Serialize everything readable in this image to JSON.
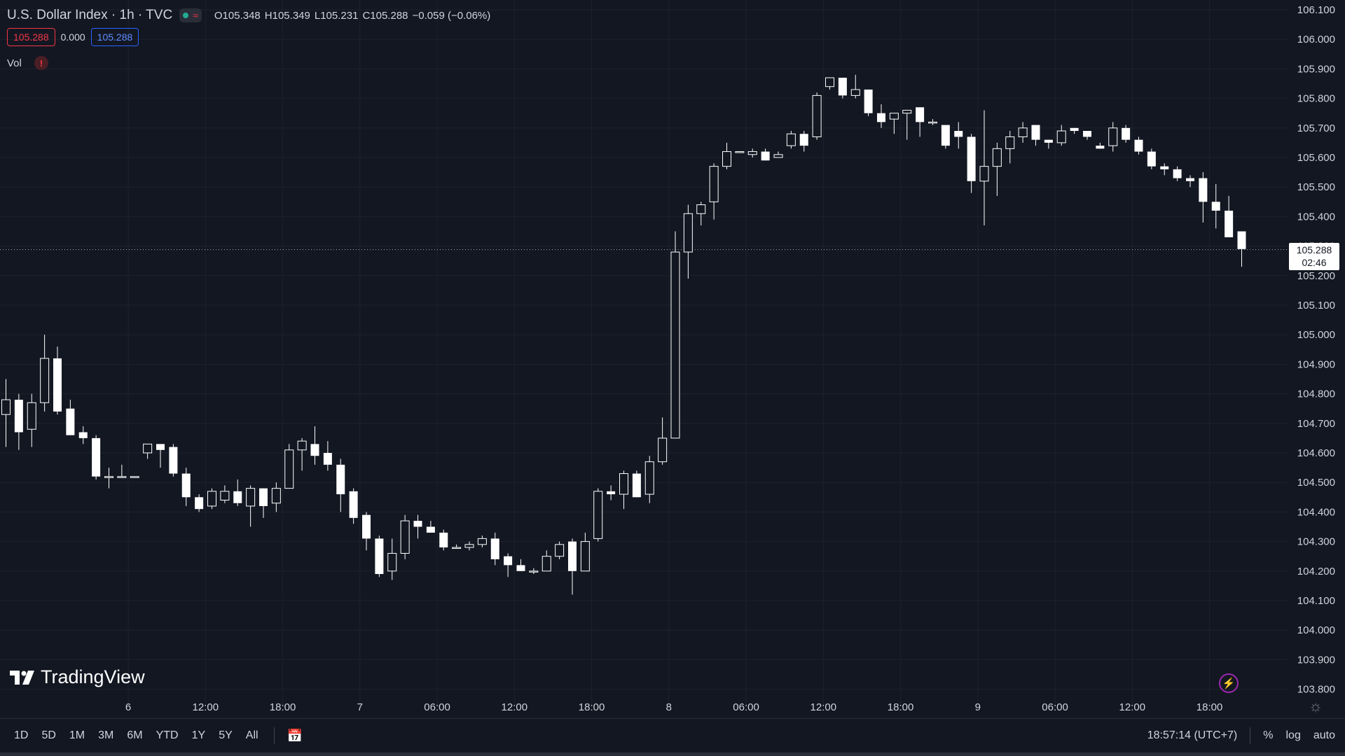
{
  "header": {
    "title": "U.S. Dollar Index · 1h · TVC",
    "ohlc": {
      "open_label": "O",
      "open": "105.348",
      "high_label": "H",
      "high": "105.349",
      "low_label": "L",
      "low": "105.231",
      "close_label": "C",
      "close": "105.288",
      "change": "−0.059 (−0.06%)"
    },
    "bid": "105.288",
    "spread": "0.000",
    "ask": "105.288",
    "vol_label": "Vol",
    "vol_warning_icon": "exclamation-icon",
    "status_icon": "market-open-dot-icon"
  },
  "last_price": {
    "price": "105.288",
    "countdown": "02:46"
  },
  "logo_text": "TradingView",
  "bottom_bar": {
    "ranges": [
      "1D",
      "5D",
      "1M",
      "3M",
      "6M",
      "YTD",
      "1Y",
      "5Y",
      "All"
    ],
    "time": "18:57:14 (UTC+7)",
    "percent_label": "%",
    "log_label": "log",
    "auto_label": "auto"
  },
  "colors": {
    "background": "#131722",
    "candle": "#ffffff",
    "grid": "#1f2330",
    "bid_red": "#f23645",
    "ask_blue": "#2962ff"
  },
  "chart_data": {
    "type": "candlestick",
    "title": "U.S. Dollar Index",
    "interval": "1h",
    "ylim": [
      103.75,
      106.12
    ],
    "y_ticks": [
      "106.100",
      "106.000",
      "105.900",
      "105.800",
      "105.700",
      "105.600",
      "105.500",
      "105.400",
      "105.300",
      "105.200",
      "105.100",
      "105.000",
      "104.900",
      "104.800",
      "104.700",
      "104.600",
      "104.500",
      "104.400",
      "104.300",
      "104.200",
      "104.100",
      "104.000",
      "103.900",
      "103.800"
    ],
    "x_ticks": [
      {
        "label": "6",
        "index": 9.5
      },
      {
        "label": "12:00",
        "index": 15.5
      },
      {
        "label": "18:00",
        "index": 21.5
      },
      {
        "label": "7",
        "index": 27.5
      },
      {
        "label": "06:00",
        "index": 33.5
      },
      {
        "label": "12:00",
        "index": 39.5
      },
      {
        "label": "18:00",
        "index": 45.5
      },
      {
        "label": "8",
        "index": 51.5
      },
      {
        "label": "06:00",
        "index": 57.5
      },
      {
        "label": "12:00",
        "index": 63.5
      },
      {
        "label": "18:00",
        "index": 69.5
      },
      {
        "label": "9",
        "index": 75.5
      },
      {
        "label": "06:00",
        "index": 81.5
      },
      {
        "label": "12:00",
        "index": 87.5
      },
      {
        "label": "18:00",
        "index": 93.5
      }
    ],
    "grid": true,
    "last_price_line": 105.288,
    "candles": [
      [
        104.73,
        104.78,
        104.85,
        104.62
      ],
      [
        104.78,
        104.67,
        104.8,
        104.61
      ],
      [
        104.68,
        104.77,
        104.8,
        104.62
      ],
      [
        104.77,
        104.92,
        105.0,
        104.74
      ],
      [
        104.92,
        104.74,
        104.96,
        104.73
      ],
      [
        104.75,
        104.66,
        104.78,
        104.66
      ],
      [
        104.67,
        104.65,
        104.69,
        104.63
      ],
      [
        104.65,
        104.52,
        104.66,
        104.51
      ],
      [
        104.52,
        104.52,
        104.55,
        104.48
      ],
      [
        104.52,
        104.52,
        104.56,
        104.52
      ],
      [
        104.52,
        104.52,
        104.52,
        104.52
      ],
      [
        104.6,
        104.63,
        104.63,
        104.58
      ],
      [
        104.63,
        104.61,
        104.63,
        104.55
      ],
      [
        104.62,
        104.53,
        104.63,
        104.52
      ],
      [
        104.53,
        104.45,
        104.55,
        104.42
      ],
      [
        104.45,
        104.41,
        104.46,
        104.4
      ],
      [
        104.42,
        104.47,
        104.48,
        104.41
      ],
      [
        104.44,
        104.47,
        104.49,
        104.43
      ],
      [
        104.47,
        104.43,
        104.51,
        104.42
      ],
      [
        104.42,
        104.48,
        104.49,
        104.35
      ],
      [
        104.48,
        104.42,
        104.48,
        104.38
      ],
      [
        104.43,
        104.48,
        104.5,
        104.4
      ],
      [
        104.48,
        104.61,
        104.63,
        104.48
      ],
      [
        104.61,
        104.64,
        104.65,
        104.54
      ],
      [
        104.63,
        104.59,
        104.69,
        104.56
      ],
      [
        104.6,
        104.56,
        104.64,
        104.54
      ],
      [
        104.56,
        104.46,
        104.58,
        104.4
      ],
      [
        104.47,
        104.38,
        104.48,
        104.36
      ],
      [
        104.39,
        104.31,
        104.4,
        104.27
      ],
      [
        104.31,
        104.19,
        104.32,
        104.18
      ],
      [
        104.2,
        104.26,
        104.31,
        104.17
      ],
      [
        104.26,
        104.37,
        104.39,
        104.24
      ],
      [
        104.37,
        104.35,
        104.39,
        104.31
      ],
      [
        104.35,
        104.33,
        104.37,
        104.33
      ],
      [
        104.33,
        104.28,
        104.34,
        104.27
      ],
      [
        104.28,
        104.28,
        104.29,
        104.28
      ],
      [
        104.28,
        104.29,
        104.3,
        104.27
      ],
      [
        104.29,
        104.31,
        104.32,
        104.28
      ],
      [
        104.31,
        104.24,
        104.33,
        104.22
      ],
      [
        104.25,
        104.22,
        104.26,
        104.18
      ],
      [
        104.22,
        104.2,
        104.24,
        104.2
      ],
      [
        104.2,
        104.2,
        104.21,
        104.19
      ],
      [
        104.2,
        104.25,
        104.27,
        104.2
      ],
      [
        104.25,
        104.29,
        104.3,
        104.24
      ],
      [
        104.3,
        104.2,
        104.31,
        104.12
      ],
      [
        104.2,
        104.3,
        104.33,
        104.2
      ],
      [
        104.31,
        104.47,
        104.48,
        104.3
      ],
      [
        104.47,
        104.46,
        104.49,
        104.44
      ],
      [
        104.46,
        104.53,
        104.54,
        104.41
      ],
      [
        104.53,
        104.45,
        104.54,
        104.45
      ],
      [
        104.46,
        104.57,
        104.59,
        104.43
      ],
      [
        104.57,
        104.65,
        104.72,
        104.56
      ],
      [
        104.65,
        105.28,
        105.35,
        104.65
      ],
      [
        105.28,
        105.41,
        105.44,
        105.19
      ],
      [
        105.41,
        105.44,
        105.45,
        105.37
      ],
      [
        105.45,
        105.57,
        105.58,
        105.39
      ],
      [
        105.57,
        105.62,
        105.65,
        105.56
      ],
      [
        105.62,
        105.62,
        105.62,
        105.62
      ],
      [
        105.61,
        105.62,
        105.63,
        105.6
      ],
      [
        105.62,
        105.59,
        105.63,
        105.59
      ],
      [
        105.6,
        105.61,
        105.62,
        105.6
      ],
      [
        105.64,
        105.68,
        105.69,
        105.63
      ],
      [
        105.68,
        105.64,
        105.69,
        105.62
      ],
      [
        105.67,
        105.81,
        105.82,
        105.66
      ],
      [
        105.84,
        105.87,
        105.87,
        105.83
      ],
      [
        105.87,
        105.81,
        105.87,
        105.8
      ],
      [
        105.81,
        105.83,
        105.88,
        105.8
      ],
      [
        105.83,
        105.75,
        105.83,
        105.74
      ],
      [
        105.75,
        105.72,
        105.78,
        105.7
      ],
      [
        105.73,
        105.75,
        105.75,
        105.68
      ],
      [
        105.75,
        105.76,
        105.76,
        105.66
      ],
      [
        105.77,
        105.72,
        105.76,
        105.67
      ],
      [
        105.72,
        105.72,
        105.73,
        105.71
      ],
      [
        105.71,
        105.64,
        105.71,
        105.63
      ],
      [
        105.69,
        105.67,
        105.72,
        105.63
      ],
      [
        105.67,
        105.52,
        105.68,
        105.48
      ],
      [
        105.52,
        105.57,
        105.76,
        105.37
      ],
      [
        105.57,
        105.63,
        105.65,
        105.47
      ],
      [
        105.63,
        105.67,
        105.69,
        105.58
      ],
      [
        105.67,
        105.7,
        105.72,
        105.65
      ],
      [
        105.71,
        105.66,
        105.71,
        105.64
      ],
      [
        105.66,
        105.65,
        105.66,
        105.63
      ],
      [
        105.65,
        105.69,
        105.71,
        105.64
      ],
      [
        105.7,
        105.69,
        105.7,
        105.68
      ],
      [
        105.69,
        105.67,
        105.69,
        105.66
      ],
      [
        105.64,
        105.63,
        105.65,
        105.63
      ],
      [
        105.64,
        105.7,
        105.72,
        105.62
      ],
      [
        105.7,
        105.66,
        105.71,
        105.65
      ],
      [
        105.66,
        105.62,
        105.67,
        105.61
      ],
      [
        105.62,
        105.57,
        105.63,
        105.56
      ],
      [
        105.57,
        105.56,
        105.58,
        105.54
      ],
      [
        105.56,
        105.53,
        105.57,
        105.52
      ],
      [
        105.53,
        105.52,
        105.54,
        105.5
      ],
      [
        105.53,
        105.45,
        105.55,
        105.38
      ],
      [
        105.45,
        105.42,
        105.51,
        105.36
      ],
      [
        105.42,
        105.33,
        105.47,
        105.33
      ],
      [
        105.35,
        105.29,
        105.35,
        105.23
      ]
    ]
  }
}
